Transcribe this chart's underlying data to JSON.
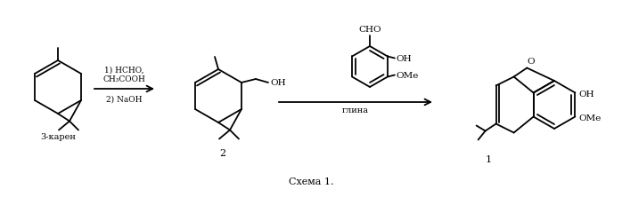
{
  "bg_color": "#ffffff",
  "line_color": "#000000",
  "label_3karen": "3-карен",
  "label_2": "2",
  "label_1": "1",
  "title": "Схема 1.",
  "reagent1": "1) HCHO,",
  "reagent2": "CH₃COOH",
  "reagent3": "2) NaOH",
  "reagent4": "глина",
  "text_CHO": "CHO",
  "text_OH": "OH",
  "text_OMe": "OMe",
  "text_O": "O",
  "figwidth": 6.98,
  "figheight": 2.22,
  "dpi": 100
}
